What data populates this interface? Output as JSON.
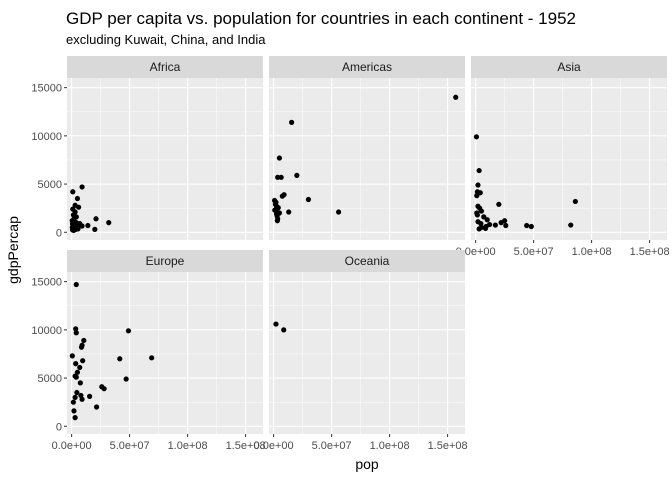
{
  "chart_data": {
    "type": "scatter",
    "title": "GDP per capita vs. population for countries in each continent - 1952",
    "subtitle": "excluding Kuwait, China, and India",
    "xlabel": "pop",
    "ylabel": "gdpPercap",
    "xlim": [
      -4000000,
      165000000
    ],
    "ylim": [
      -800,
      16000
    ],
    "x_ticks": [
      0,
      50000000,
      100000000,
      150000000
    ],
    "x_tick_labels": [
      "0.0e+00",
      "5.0e+07",
      "1.0e+08",
      "1.5e+08"
    ],
    "y_ticks": [
      0,
      5000,
      10000,
      15000
    ],
    "y_tick_labels": [
      "0",
      "5000",
      "10000",
      "15000"
    ],
    "grid": true,
    "colors": {
      "panel_bg": "#EBEBEB",
      "strip_bg": "#D9D9D9",
      "grid_line": "#FFFFFF",
      "point": "#000000",
      "text": "#000000",
      "tick_text": "#4D4D4D"
    },
    "facets": [
      {
        "name": "Africa",
        "points": [
          [
            1000000,
            4200
          ],
          [
            9000000,
            4700
          ],
          [
            5000000,
            3500
          ],
          [
            3000000,
            2800
          ],
          [
            1000000,
            2400
          ],
          [
            3000000,
            2100
          ],
          [
            6000000,
            2600
          ],
          [
            1500000,
            1800
          ],
          [
            4000000,
            1600
          ],
          [
            2000000,
            1400
          ],
          [
            21000000,
            1400
          ],
          [
            500000,
            1200
          ],
          [
            2500000,
            1100
          ],
          [
            4000000,
            1000
          ],
          [
            7000000,
            900
          ],
          [
            32000000,
            1000
          ],
          [
            1000000,
            800
          ],
          [
            3000000,
            700
          ],
          [
            5000000,
            600
          ],
          [
            9000000,
            650
          ],
          [
            14000000,
            700
          ],
          [
            600000,
            500
          ],
          [
            2000000,
            450
          ],
          [
            4500000,
            400
          ],
          [
            1200000,
            350
          ],
          [
            3500000,
            300
          ],
          [
            800000,
            250
          ],
          [
            5500000,
            350
          ],
          [
            20000000,
            300
          ],
          [
            2000000,
            600
          ],
          [
            1500000,
            750
          ],
          [
            800000,
            900
          ],
          [
            6500000,
            850
          ],
          [
            2800000,
            500
          ],
          [
            1800000,
            200
          ],
          [
            4200000,
            550
          ]
        ]
      },
      {
        "name": "Americas",
        "points": [
          [
            157000000,
            14000
          ],
          [
            15500000,
            11400
          ],
          [
            5000000,
            7700
          ],
          [
            20000000,
            5900
          ],
          [
            3500000,
            5700
          ],
          [
            6500000,
            5700
          ],
          [
            9000000,
            3900
          ],
          [
            7500000,
            3750
          ],
          [
            30000000,
            3400
          ],
          [
            2000000,
            3100
          ],
          [
            1500000,
            2900
          ],
          [
            2500000,
            2700
          ],
          [
            4000000,
            2550
          ],
          [
            3000000,
            2400
          ],
          [
            1000000,
            2300
          ],
          [
            13000000,
            2100
          ],
          [
            56000000,
            2100
          ],
          [
            2500000,
            1900
          ],
          [
            3000000,
            1700
          ],
          [
            3500000,
            1400
          ],
          [
            800000,
            3300
          ],
          [
            5000000,
            2000
          ],
          [
            3200000,
            1200
          ]
        ]
      },
      {
        "name": "Asia",
        "points": [
          [
            700000,
            9900
          ],
          [
            3000000,
            6400
          ],
          [
            2000000,
            4900
          ],
          [
            1500000,
            4200
          ],
          [
            4000000,
            4100
          ],
          [
            1000000,
            3800
          ],
          [
            86000000,
            3200
          ],
          [
            20000000,
            2900
          ],
          [
            2000000,
            2700
          ],
          [
            3500000,
            2500
          ],
          [
            5000000,
            2200
          ],
          [
            1000000,
            2000
          ],
          [
            1500000,
            1800
          ],
          [
            7000000,
            1600
          ],
          [
            10000000,
            1300
          ],
          [
            22000000,
            1000
          ],
          [
            25000000,
            1200
          ],
          [
            2000000,
            1100
          ],
          [
            4500000,
            900
          ],
          [
            12000000,
            800
          ],
          [
            17000000,
            750
          ],
          [
            26000000,
            700
          ],
          [
            9000000,
            600
          ],
          [
            44000000,
            700
          ],
          [
            48000000,
            600
          ],
          [
            82000000,
            750
          ],
          [
            5000000,
            500
          ],
          [
            3000000,
            350
          ],
          [
            8500000,
            400
          ]
        ]
      },
      {
        "name": "Europe",
        "points": [
          [
            4000000,
            14700
          ],
          [
            3500000,
            10100
          ],
          [
            49000000,
            9900
          ],
          [
            4000000,
            9700
          ],
          [
            10500000,
            8900
          ],
          [
            9000000,
            8400
          ],
          [
            8500000,
            8200
          ],
          [
            41500000,
            7000
          ],
          [
            69000000,
            7100
          ],
          [
            600000,
            7300
          ],
          [
            9500000,
            6800
          ],
          [
            3500000,
            6500
          ],
          [
            7000000,
            6100
          ],
          [
            5000000,
            5600
          ],
          [
            3000000,
            5200
          ],
          [
            4000000,
            5100
          ],
          [
            47000000,
            4900
          ],
          [
            7500000,
            4500
          ],
          [
            26000000,
            4100
          ],
          [
            28000000,
            3900
          ],
          [
            4500000,
            3500
          ],
          [
            8000000,
            3200
          ],
          [
            15500000,
            3100
          ],
          [
            3000000,
            3000
          ],
          [
            9000000,
            2800
          ],
          [
            1500000,
            2500
          ],
          [
            21500000,
            2000
          ],
          [
            2000000,
            1600
          ],
          [
            3000000,
            900
          ]
        ]
      },
      {
        "name": "Oceania",
        "points": [
          [
            2000000,
            10600
          ],
          [
            8700000,
            10000
          ]
        ]
      }
    ]
  }
}
